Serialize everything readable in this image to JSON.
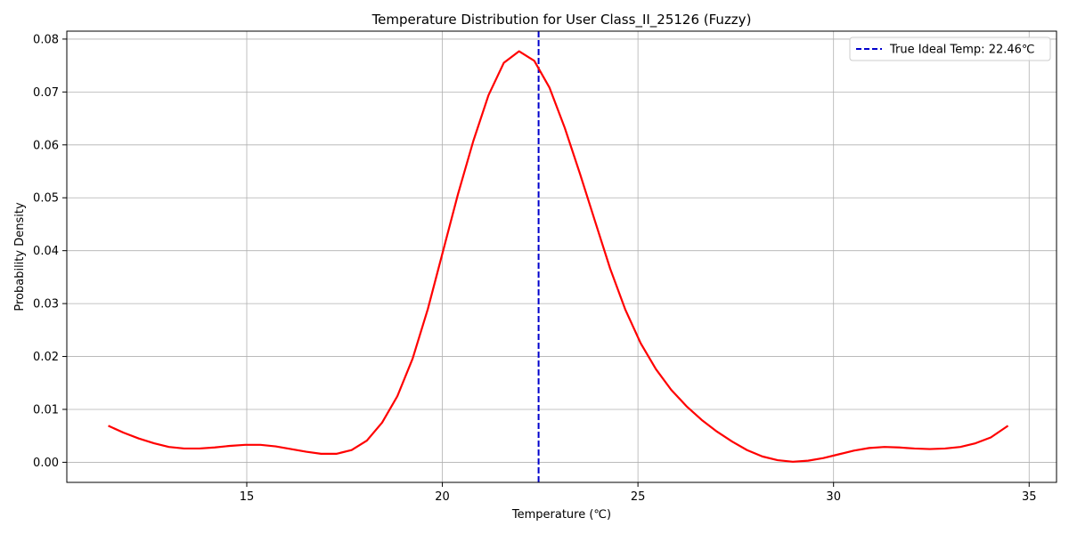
{
  "chart_data": {
    "type": "line",
    "title": "Temperature Distribution for User Class_II_25126 (Fuzzy)",
    "xlabel": "Temperature (℃)",
    "ylabel": "Probability Density",
    "xlim": [
      10.4,
      35.7
    ],
    "ylim": [
      -0.0038,
      0.0815
    ],
    "xticks": [
      15,
      20,
      25,
      30,
      35
    ],
    "yticks": [
      0.0,
      0.01,
      0.02,
      0.03,
      0.04,
      0.05,
      0.06,
      0.07,
      0.08
    ],
    "ytick_labels": [
      "0.00",
      "0.01",
      "0.02",
      "0.03",
      "0.04",
      "0.05",
      "0.06",
      "0.07",
      "0.08"
    ],
    "grid": true,
    "legend_position": "top-right",
    "series": [
      {
        "name": "",
        "color": "#ff0000",
        "x": [
          11.46,
          11.85,
          12.24,
          12.63,
          13.01,
          13.4,
          13.79,
          14.18,
          14.57,
          14.96,
          15.35,
          15.74,
          16.13,
          16.52,
          16.9,
          17.29,
          17.68,
          18.07,
          18.46,
          18.85,
          19.24,
          19.63,
          20.02,
          20.4,
          20.79,
          21.18,
          21.57,
          21.96,
          22.35,
          22.74,
          23.13,
          23.52,
          23.91,
          24.29,
          24.68,
          25.07,
          25.46,
          25.85,
          26.24,
          26.63,
          27.02,
          27.41,
          27.79,
          28.18,
          28.57,
          28.96,
          29.35,
          29.74,
          30.13,
          30.52,
          30.91,
          31.3,
          31.68,
          32.07,
          32.46,
          32.85,
          33.24,
          33.63,
          34.02,
          34.46
        ],
        "y": [
          0.0069,
          0.0056,
          0.0045,
          0.0036,
          0.0029,
          0.0026,
          0.0026,
          0.0028,
          0.0031,
          0.0033,
          0.0033,
          0.003,
          0.0025,
          0.002,
          0.0016,
          0.0016,
          0.0023,
          0.0041,
          0.0075,
          0.0125,
          0.0196,
          0.029,
          0.04,
          0.0507,
          0.0607,
          0.0694,
          0.0755,
          0.0777,
          0.0759,
          0.0708,
          0.0632,
          0.0545,
          0.0454,
          0.0366,
          0.0288,
          0.0225,
          0.0176,
          0.0137,
          0.0106,
          0.008,
          0.0058,
          0.0039,
          0.0023,
          0.0011,
          0.0004,
          0.0001,
          0.0003,
          0.0008,
          0.0015,
          0.0022,
          0.0027,
          0.0029,
          0.0028,
          0.0026,
          0.0025,
          0.0026,
          0.0029,
          0.0036,
          0.0047,
          0.0069
        ]
      }
    ],
    "reference_line": {
      "label": "True Ideal Temp: 22.46℃",
      "x": 22.46,
      "color": "#0000cc",
      "style": "dashed"
    }
  }
}
